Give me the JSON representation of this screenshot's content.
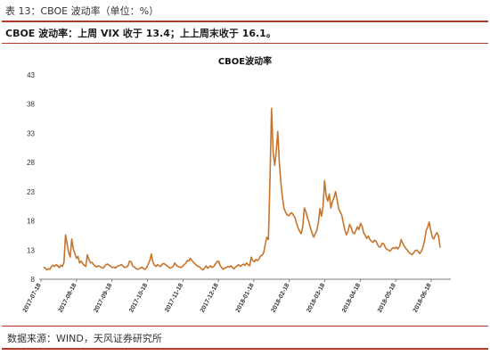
{
  "caption": "表 13：CBOE 波动率（单位：%）",
  "headline": "CBOE 波动率：上周 VIX 收于 13.4；上上周末收于 16.1。",
  "source": "数据来源：WIND，天风证券研究所",
  "chart_data": {
    "type": "line",
    "title": "CBOE波动率",
    "xlabel": "",
    "ylabel": "",
    "ylim": [
      8,
      43
    ],
    "yticks": [
      8,
      13,
      18,
      23,
      28,
      33,
      38,
      43
    ],
    "xticks": [
      "2017-07-18",
      "2017-08-18",
      "2017-09-18",
      "2017-10-18",
      "2017-11-18",
      "2017-12-18",
      "2018-01-18",
      "2018-02-18",
      "2018-03-18",
      "2018-04-18",
      "2018-05-18",
      "2018-06-18"
    ],
    "grid": false,
    "legend": "none",
    "line_color": "#c8742b",
    "series": [
      {
        "values": [
          10.1,
          9.9,
          9.6,
          9.8,
          9.7,
          10.2,
          10.4,
          10.2,
          10.5,
          10.3,
          10.0,
          10.4,
          10.2,
          10.9,
          15.6,
          14.1,
          12.6,
          11.8,
          14.9,
          13.2,
          12.4,
          11.6,
          11.9,
          10.8,
          11.1,
          10.7,
          10.4,
          10.2,
          12.2,
          11.4,
          10.8,
          10.9,
          10.5,
          10.3,
          10.1,
          10.3,
          10.2,
          10.0,
          9.9,
          10.2,
          10.5,
          10.6,
          10.4,
          10.2,
          10.0,
          10.1,
          9.9,
          10.2,
          10.3,
          10.4,
          10.5,
          10.2,
          10.0,
          10.1,
          10.3,
          11.1,
          11.0,
          10.3,
          10.1,
          9.9,
          9.7,
          9.8,
          9.9,
          10.1,
          9.8,
          9.7,
          10.0,
          10.6,
          11.2,
          12.3,
          10.9,
          10.4,
          10.2,
          10.5,
          10.3,
          10.2,
          10.6,
          10.7,
          10.5,
          10.3,
          10.1,
          9.9,
          10.0,
          10.2,
          10.8,
          10.4,
          10.2,
          10.1,
          10.0,
          10.2,
          10.5,
          10.7,
          11.2,
          11.1,
          11.6,
          11.2,
          10.9,
          10.6,
          10.4,
          10.2,
          10.1,
          9.8,
          9.6,
          9.9,
          10.3,
          9.9,
          10.1,
          10.3,
          10.0,
          10.2,
          10.6,
          11.0,
          11.1,
          10.4,
          10.0,
          9.7,
          9.9,
          10.0,
          10.2,
          10.1,
          10.3,
          10.0,
          9.8,
          10.1,
          10.3,
          10.5,
          10.2,
          10.4,
          10.6,
          10.4,
          10.8,
          10.5,
          10.3,
          11.8,
          11.2,
          11.0,
          11.4,
          11.2,
          11.5,
          12.0,
          12.1,
          12.6,
          14.0,
          15.2,
          14.8,
          25.0,
          37.3,
          30.0,
          27.5,
          29.8,
          33.3,
          28.0,
          24.5,
          22.0,
          20.1,
          19.5,
          19.0,
          18.9,
          19.2,
          19.4,
          19.0,
          18.6,
          17.6,
          16.8,
          16.2,
          15.8,
          17.0,
          20.2,
          19.6,
          18.5,
          17.8,
          16.7,
          15.9,
          15.2,
          15.8,
          16.4,
          17.7,
          20.1,
          18.8,
          20.5,
          24.9,
          22.3,
          21.4,
          22.6,
          20.2,
          21.3,
          22.0,
          23.0,
          21.6,
          20.1,
          19.5,
          19.0,
          17.6,
          16.4,
          15.6,
          16.2,
          17.4,
          16.9,
          16.0,
          15.8,
          16.3,
          17.0,
          16.5,
          17.6,
          17.1,
          16.0,
          15.5,
          15.0,
          15.4,
          14.8,
          14.5,
          14.3,
          14.7,
          14.5,
          13.9,
          13.5,
          13.6,
          14.2,
          14.0,
          13.4,
          13.1,
          13.0,
          12.8,
          13.2,
          13.4,
          13.3,
          13.5,
          13.2,
          13.6,
          14.8,
          14.2,
          13.7,
          13.3,
          13.0,
          12.6,
          12.4,
          12.2,
          12.5,
          12.9,
          13.0,
          12.7,
          12.4,
          12.8,
          13.5,
          14.6,
          16.3,
          16.9,
          17.8,
          16.4,
          15.2,
          14.9,
          15.6,
          16.0,
          15.4,
          13.4
        ]
      }
    ]
  }
}
